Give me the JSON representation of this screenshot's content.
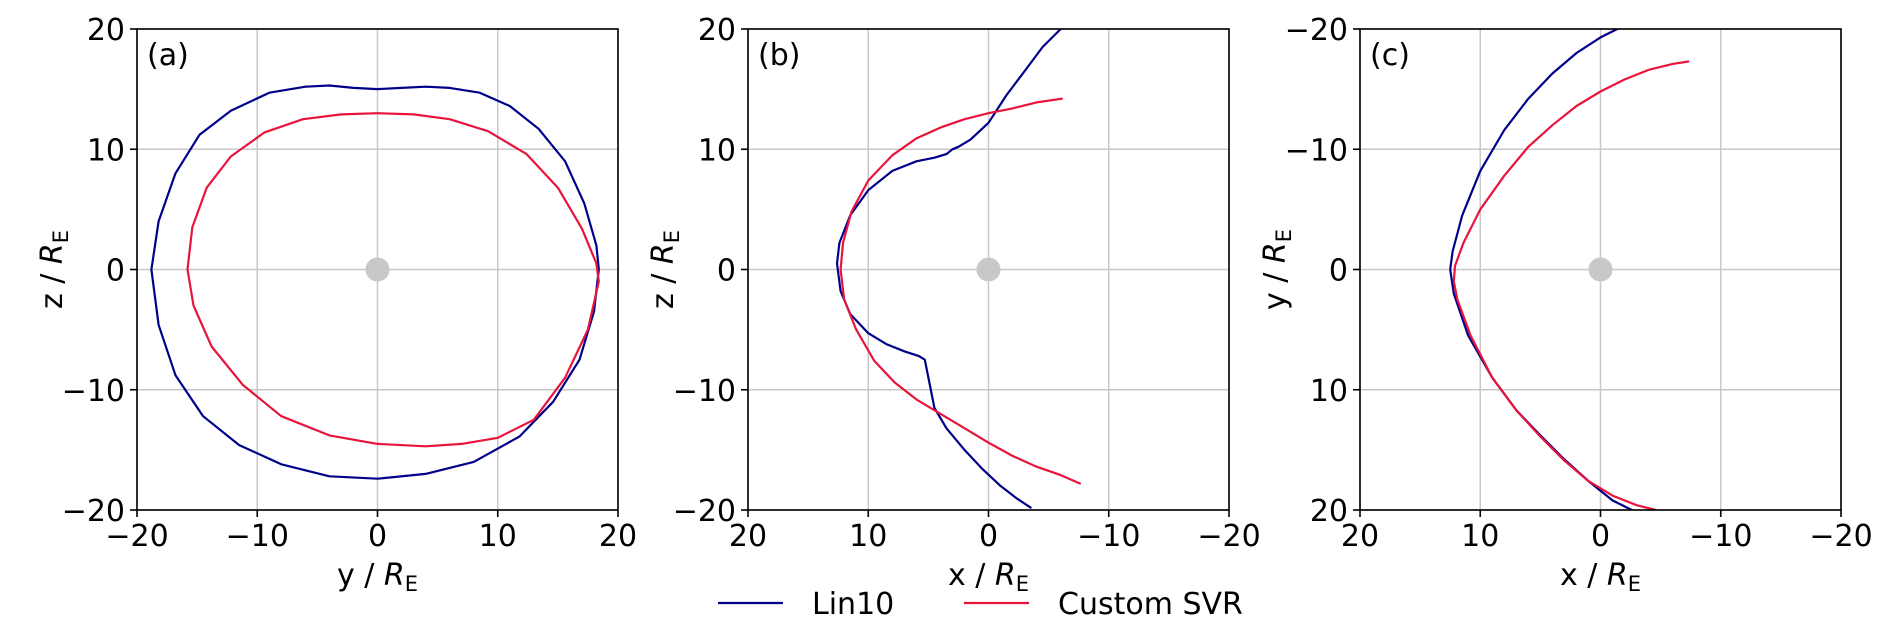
{
  "colors": {
    "lin10": "#00008b",
    "custom_svr": "#e8143c",
    "earth": "#c8c8c8"
  },
  "legend": {
    "items": [
      {
        "label": "Lin10",
        "color": "#00008b"
      },
      {
        "label": "Custom SVR",
        "color": "#e8143c"
      }
    ]
  },
  "chart_data": [
    {
      "type": "line",
      "panel_label": "(a)",
      "xlabel_main": "y / R",
      "xlabel_sub": "E",
      "ylabel_main": "z / R",
      "ylabel_sub": "E",
      "xlim": [
        -20,
        20
      ],
      "ylim": [
        -20,
        20
      ],
      "xticks": [
        -20,
        -10,
        0,
        10,
        20
      ],
      "yticks": [
        -20,
        -10,
        0,
        10,
        20
      ],
      "xtick_labels": [
        "−20",
        "−10",
        "0",
        "10",
        "20"
      ],
      "ytick_labels": [
        "−20",
        "−10",
        "0",
        "10",
        "20"
      ],
      "grid": true,
      "earth": {
        "x": 0,
        "y": 0,
        "radius": 1
      },
      "series": [
        {
          "name": "Lin10",
          "x": [
            -18.8,
            -18.2,
            -16.8,
            -14.8,
            -12.2,
            -9,
            -6,
            -4,
            -2,
            0,
            2,
            4,
            6,
            8.5,
            11,
            13.4,
            15.6,
            17.2,
            18.2,
            18.4,
            18,
            16.8,
            14.6,
            11.8,
            8,
            4,
            0,
            -4,
            -8,
            -11.5,
            -14.5,
            -16.8,
            -18.2,
            -18.8
          ],
          "y": [
            0,
            4,
            8,
            11.2,
            13.2,
            14.7,
            15.2,
            15.3,
            15.1,
            15,
            15.1,
            15.2,
            15.1,
            14.7,
            13.6,
            11.7,
            9,
            5.5,
            2,
            0,
            -3.5,
            -7.5,
            -11,
            -13.9,
            -16,
            -17,
            -17.4,
            -17.2,
            -16.2,
            -14.6,
            -12.2,
            -8.8,
            -4.6,
            0
          ]
        },
        {
          "name": "Custom SVR",
          "x": [
            -15.8,
            -15.4,
            -14.2,
            -12.2,
            -9.4,
            -6.2,
            -3,
            0,
            3,
            6,
            9.2,
            12.4,
            15,
            17,
            18.2,
            18.4,
            17.5,
            15.6,
            13,
            10,
            7,
            4,
            0,
            -4,
            -8,
            -11.2,
            -13.8,
            -15.3,
            -15.8
          ],
          "y": [
            0,
            3.5,
            6.8,
            9.4,
            11.4,
            12.5,
            12.9,
            13,
            12.9,
            12.5,
            11.5,
            9.6,
            6.8,
            3.4,
            0.5,
            -1,
            -5,
            -9,
            -12.5,
            -14,
            -14.5,
            -14.7,
            -14.5,
            -13.8,
            -12.2,
            -9.6,
            -6.4,
            -3,
            0
          ]
        }
      ]
    },
    {
      "type": "line",
      "panel_label": "(b)",
      "xlabel_main": "x / R",
      "xlabel_sub": "E",
      "ylabel_main": "z / R",
      "ylabel_sub": "E",
      "xlim": [
        20,
        -20
      ],
      "ylim": [
        -20,
        20
      ],
      "xticks": [
        20,
        10,
        0,
        -10,
        -20
      ],
      "yticks": [
        -20,
        -10,
        0,
        10,
        20
      ],
      "xtick_labels": [
        "20",
        "10",
        "0",
        "−10",
        "−20"
      ],
      "ytick_labels": [
        "−20",
        "−10",
        "0",
        "10",
        "20"
      ],
      "grid": true,
      "earth": {
        "x": 0,
        "y": 0,
        "radius": 1
      },
      "series": [
        {
          "name": "Lin10",
          "x": [
            -6,
            -4.5,
            -3,
            -1.5,
            0,
            1.5,
            2.5,
            3,
            3.5,
            4.5,
            6,
            8,
            10,
            11.5,
            12.4,
            12.6,
            12.3,
            11.5,
            10,
            8.5,
            7,
            5.8,
            5.3,
            5,
            4.5,
            3.5,
            2,
            0.5,
            -1,
            -2.3,
            -3.5
          ],
          "y": [
            20,
            18.5,
            16.5,
            14.5,
            12.2,
            10.8,
            10.2,
            10,
            9.6,
            9.3,
            9,
            8.2,
            6.6,
            4.5,
            2.2,
            0.5,
            -1.8,
            -3.7,
            -5.3,
            -6.2,
            -6.8,
            -7.2,
            -7.5,
            -9,
            -11.5,
            -13.2,
            -15,
            -16.6,
            -18,
            -19,
            -19.8
          ]
        },
        {
          "name": "Custom SVR",
          "x": [
            -6.1,
            -4,
            -2,
            0,
            2,
            4,
            6,
            8,
            10,
            11.4,
            12.1,
            12.3,
            12,
            11,
            9.5,
            7.8,
            6,
            4,
            2,
            0,
            -2,
            -4,
            -6,
            -7.6
          ],
          "y": [
            14.2,
            13.9,
            13.4,
            13,
            12.5,
            11.8,
            10.9,
            9.5,
            7.4,
            4.8,
            2.2,
            0,
            -2.5,
            -5,
            -7.6,
            -9.4,
            -10.8,
            -12,
            -13.2,
            -14.4,
            -15.5,
            -16.4,
            -17.1,
            -17.8
          ]
        }
      ]
    },
    {
      "type": "line",
      "panel_label": "(c)",
      "xlabel_main": "x / R",
      "xlabel_sub": "E",
      "ylabel_main": "y / R",
      "ylabel_sub": "E",
      "xlim": [
        20,
        -20
      ],
      "ylim": [
        20,
        -20
      ],
      "xticks": [
        20,
        10,
        0,
        -10,
        -20
      ],
      "yticks": [
        -20,
        -10,
        0,
        10,
        20
      ],
      "xtick_labels": [
        "20",
        "10",
        "0",
        "−10",
        "−20"
      ],
      "ytick_labels": [
        "−20",
        "−10",
        "0",
        "10",
        "20"
      ],
      "grid": true,
      "earth": {
        "x": 0,
        "y": 0,
        "radius": 1
      },
      "series": [
        {
          "name": "Lin10",
          "x": [
            -1.4,
            0,
            2,
            4,
            6,
            8,
            10,
            11.5,
            12.3,
            12.5,
            12.2,
            11,
            9,
            7,
            5,
            3,
            1,
            -1,
            -2.6
          ],
          "y": [
            -20,
            -19.3,
            -18,
            -16.3,
            -14.2,
            -11.6,
            -8.2,
            -4.5,
            -1.5,
            0,
            2,
            5.5,
            9,
            11.7,
            13.8,
            15.8,
            17.6,
            19.2,
            20
          ]
        },
        {
          "name": "Custom SVR",
          "x": [
            -7.3,
            -6,
            -4,
            -2,
            0,
            2,
            4,
            6,
            8,
            10,
            11.4,
            12.1,
            12.2,
            11.9,
            10.8,
            9,
            7,
            5,
            3,
            1,
            -1,
            -3,
            -4.6
          ],
          "y": [
            -17.3,
            -17.1,
            -16.6,
            -15.8,
            -14.8,
            -13.6,
            -12,
            -10.2,
            -7.8,
            -5,
            -2.2,
            -0.3,
            1,
            2.5,
            5.5,
            9,
            11.7,
            13.9,
            15.9,
            17.6,
            18.8,
            19.6,
            20
          ]
        }
      ]
    }
  ]
}
